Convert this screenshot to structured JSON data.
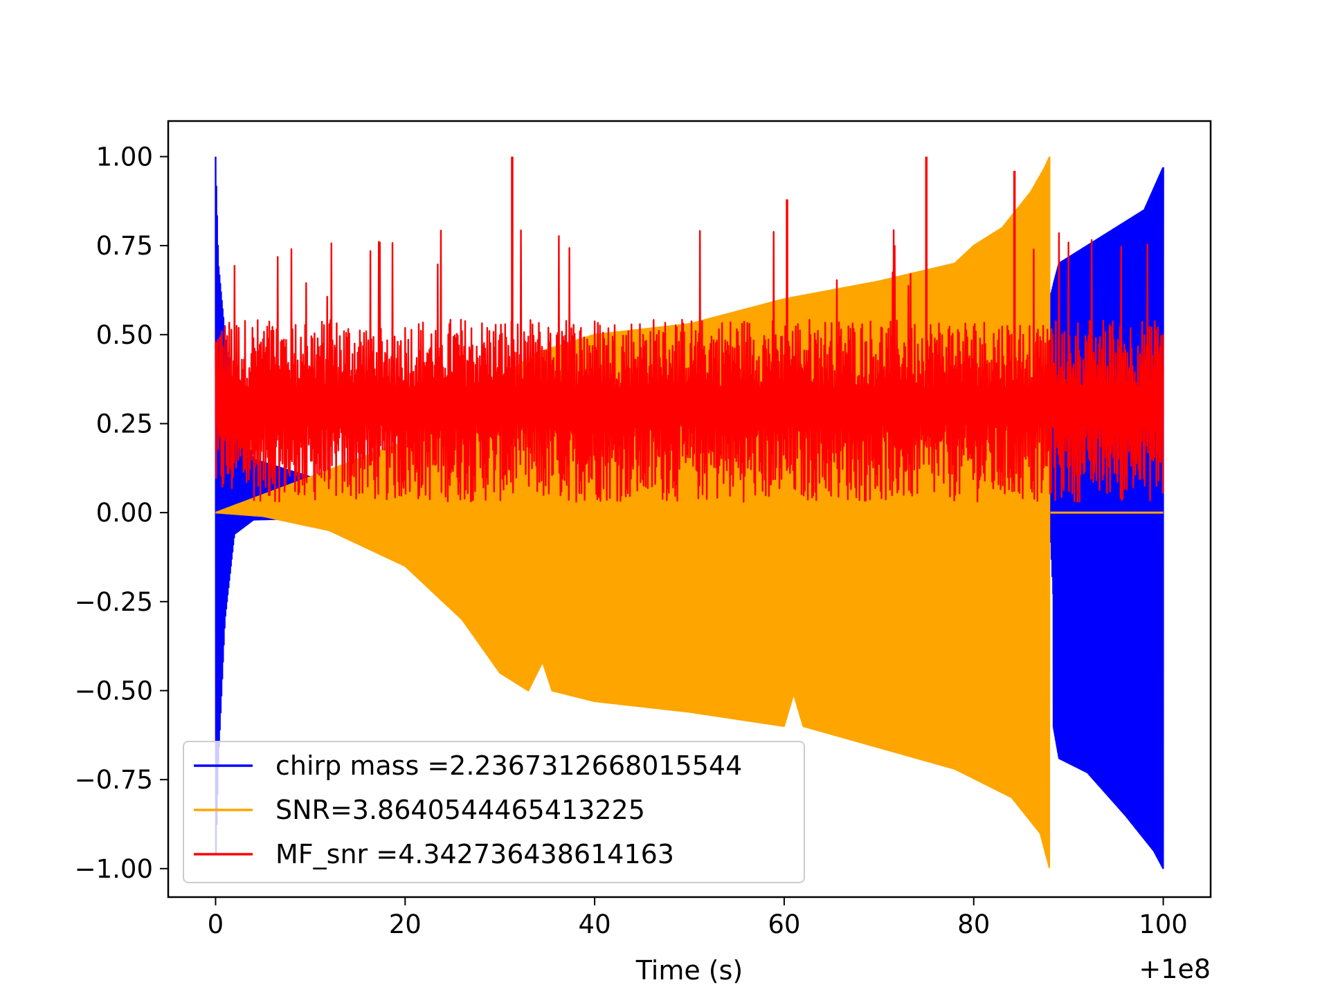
{
  "chart_data": {
    "type": "line",
    "xlabel": "Time (s)",
    "x_offset_label": "+1e8",
    "x_offset": 100000000,
    "xlim": [
      -5,
      105
    ],
    "ylim": [
      -1.08,
      1.1
    ],
    "x_ticks": [
      0,
      20,
      40,
      60,
      80,
      100
    ],
    "x_tick_labels": [
      "0",
      "20",
      "40",
      "60",
      "80",
      "100"
    ],
    "y_ticks": [
      1.0,
      0.75,
      0.5,
      0.25,
      0.0,
      -0.25,
      -0.5,
      -0.75,
      -1.0
    ],
    "y_tick_labels": [
      "1.00",
      "0.75",
      "0.50",
      "0.25",
      "0.00",
      "−0.25",
      "−0.50",
      "−0.75",
      "−1.00"
    ],
    "grid": false,
    "legend_position": "lower-left",
    "series": [
      {
        "name": "chirp mass =2.2367312668015544",
        "color": "#0000ff",
        "kind": "oscillating-envelope",
        "upper": [
          [
            0,
            1.0
          ],
          [
            0.3,
            0.7
          ],
          [
            1,
            0.5
          ],
          [
            2,
            0.3
          ],
          [
            4,
            0.15
          ],
          [
            10,
            0.1
          ],
          [
            30,
            0.2
          ],
          [
            60,
            0.4
          ],
          [
            80,
            0.55
          ],
          [
            88,
            0.6
          ],
          [
            89,
            0.7
          ],
          [
            92,
            0.75
          ],
          [
            95,
            0.8
          ],
          [
            98,
            0.85
          ],
          [
            100,
            0.97
          ]
        ],
        "lower": [
          [
            0,
            -1.0
          ],
          [
            0.3,
            -0.7
          ],
          [
            1,
            -0.3
          ],
          [
            2,
            -0.06
          ],
          [
            4,
            -0.02
          ],
          [
            20,
            -0.01
          ],
          [
            60,
            -0.01
          ],
          [
            61,
            -0.5
          ],
          [
            62,
            -0.01
          ],
          [
            88,
            -0.01
          ],
          [
            88.5,
            -0.3
          ],
          [
            89,
            -0.1
          ],
          [
            90,
            -0.03
          ],
          [
            95,
            -0.01
          ],
          [
            100,
            -0.01
          ]
        ],
        "lower_late": [
          [
            88.4,
            -0.6
          ],
          [
            89,
            -0.69
          ],
          [
            92,
            -0.73
          ],
          [
            96,
            -0.85
          ],
          [
            99,
            -0.95
          ],
          [
            100,
            -1.0
          ]
        ]
      },
      {
        "name": "SNR=3.8640544465413225",
        "color": "#ffa500",
        "kind": "oscillating-envelope",
        "upper": [
          [
            0,
            0.0
          ],
          [
            20,
            0.2
          ],
          [
            34,
            0.45
          ],
          [
            40,
            0.5
          ],
          [
            50,
            0.53
          ],
          [
            60,
            0.6
          ],
          [
            70,
            0.65
          ],
          [
            78,
            0.7
          ],
          [
            80,
            0.75
          ],
          [
            83,
            0.8
          ],
          [
            86,
            0.9
          ],
          [
            87.5,
            0.97
          ],
          [
            88,
            1.0
          ]
        ],
        "lower": [
          [
            0,
            0.0
          ],
          [
            5,
            -0.01
          ],
          [
            12,
            -0.05
          ],
          [
            20,
            -0.15
          ],
          [
            26,
            -0.3
          ],
          [
            30,
            -0.45
          ],
          [
            33,
            -0.5
          ],
          [
            34.5,
            -0.42
          ],
          [
            35.5,
            -0.5
          ],
          [
            40,
            -0.53
          ],
          [
            50,
            -0.56
          ],
          [
            60,
            -0.6
          ],
          [
            61,
            -0.51
          ],
          [
            62,
            -0.6
          ],
          [
            70,
            -0.66
          ],
          [
            78,
            -0.72
          ],
          [
            84,
            -0.8
          ],
          [
            87,
            -0.9
          ],
          [
            88,
            -1.0
          ]
        ],
        "after": [
          [
            88.1,
            0.0
          ],
          [
            100,
            0.0
          ]
        ]
      },
      {
        "name": "MF_snr =4.342736438614163",
        "color": "#ff0000",
        "kind": "noise-band",
        "band_low": 0.03,
        "band_high": 0.55,
        "x_range": [
          0,
          100
        ],
        "peak_spikes": [
          [
            31.3,
            1.0
          ],
          [
            75,
            1.0
          ],
          [
            60.3,
            0.88
          ],
          [
            84.3,
            0.96
          ]
        ]
      }
    ]
  }
}
